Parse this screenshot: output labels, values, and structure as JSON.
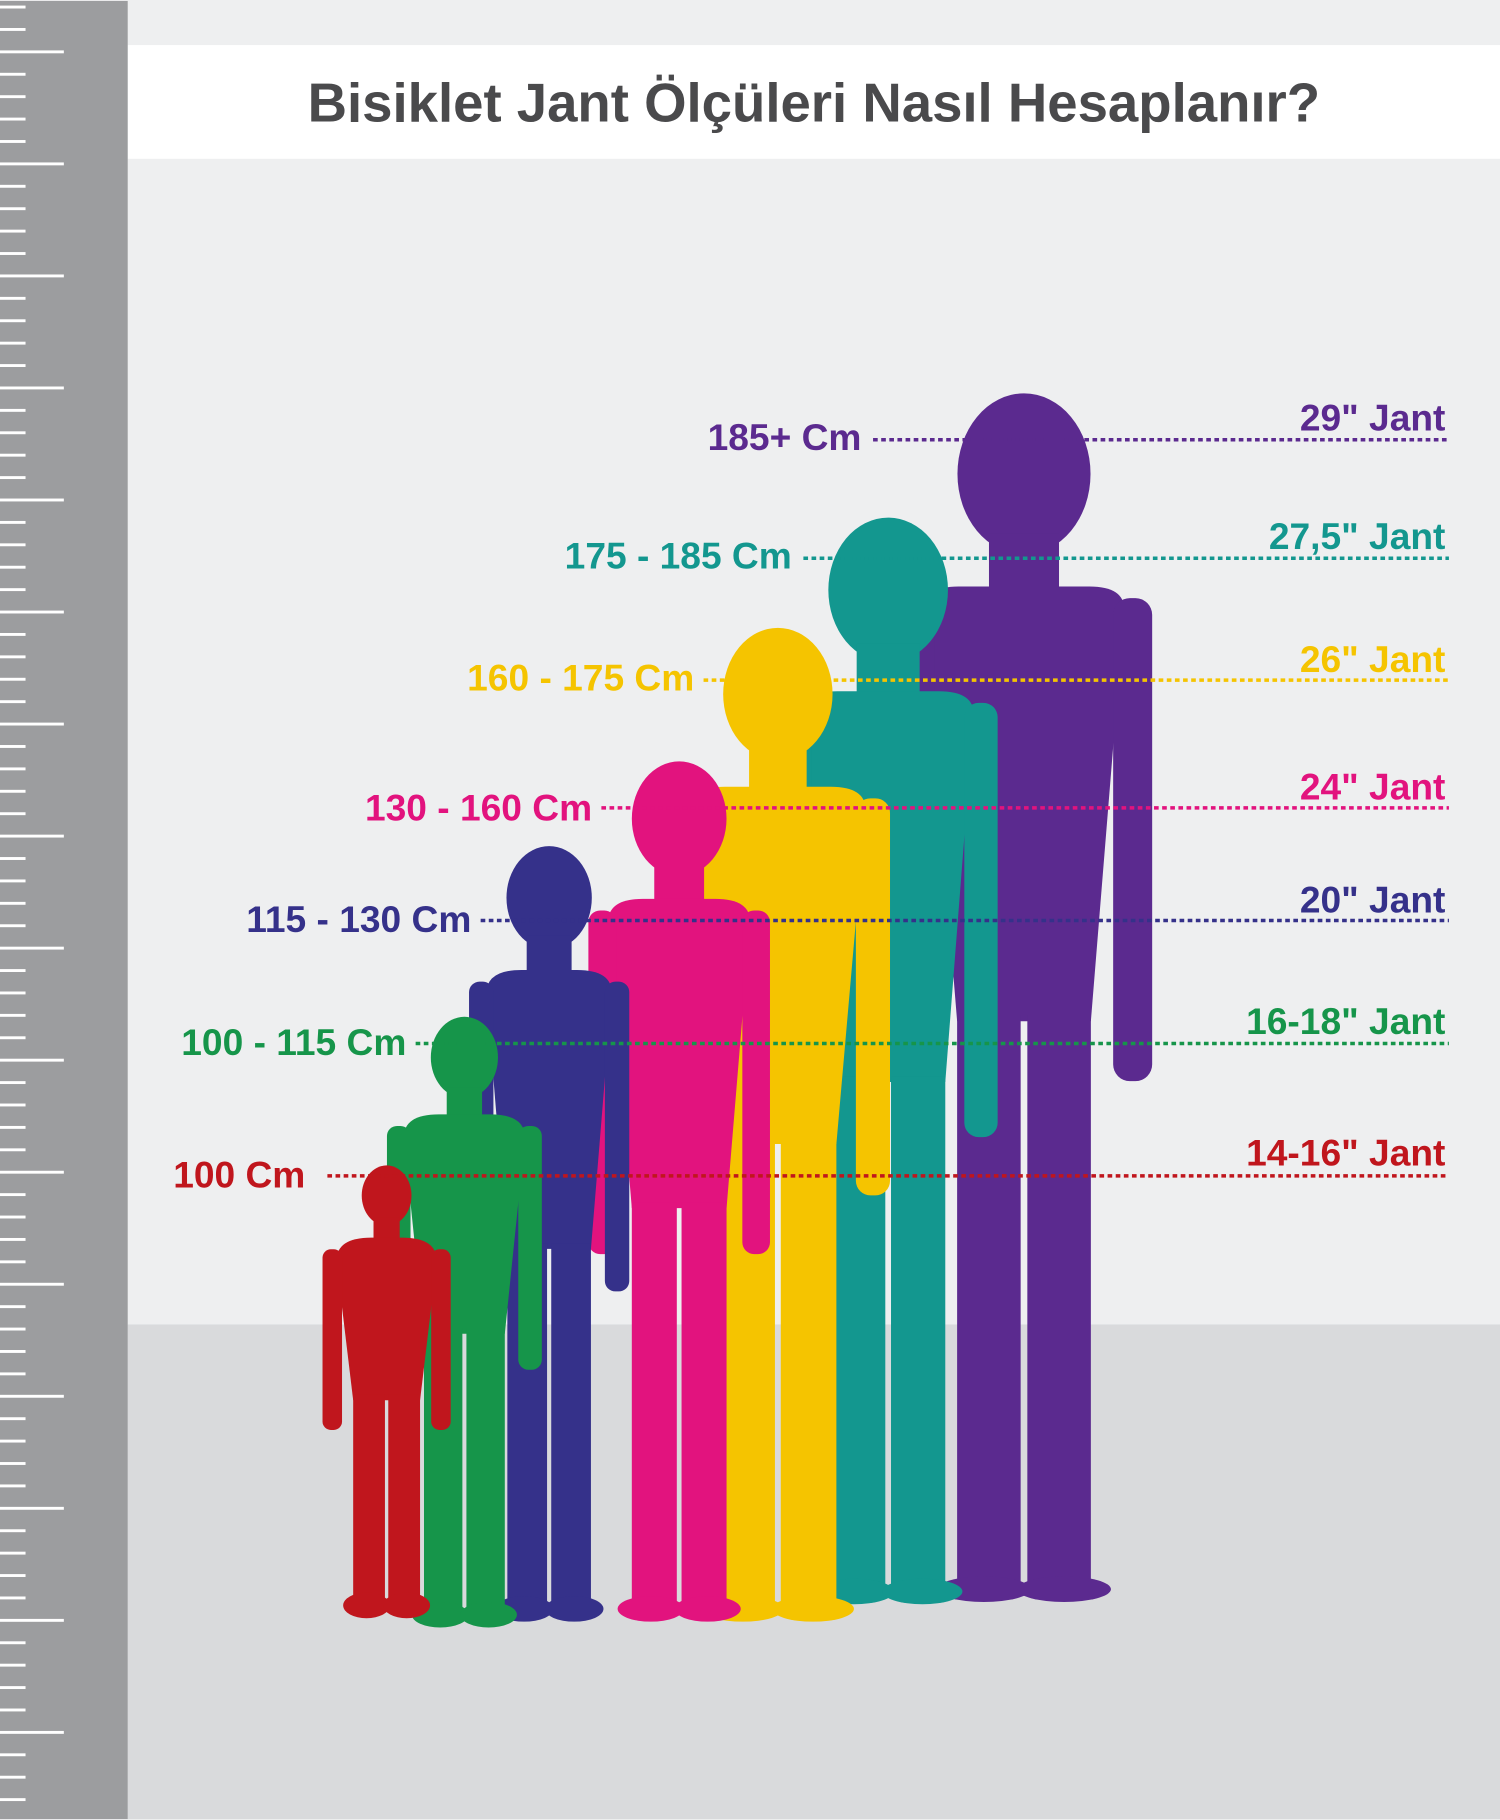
{
  "title": "Bisiklet Jant Ölçüleri Nasıl Hesaplanır?",
  "colors": {
    "ruler": "#9c9d9f",
    "ruler_ticks": "#ffffff",
    "background_wall": "#eeeff0",
    "floor": "#d8d9db",
    "title_band": "#ffffff"
  },
  "rows": [
    {
      "height": "185+ Cm",
      "rim": "29\" Jant",
      "color": "#5b2a8f"
    },
    {
      "height": "175 - 185 Cm",
      "rim": "27,5\" Jant",
      "color": "#13978f"
    },
    {
      "height": "160 - 175 Cm",
      "rim": "26\" Jant",
      "color": "#f5c400"
    },
    {
      "height": "130 - 160 Cm",
      "rim": "24\" Jant",
      "color": "#e2137e"
    },
    {
      "height": "115 - 130 Cm",
      "rim": "20\" Jant",
      "color": "#35318a"
    },
    {
      "height": "100 - 115 Cm",
      "rim": "16-18\" Jant",
      "color": "#16954a"
    },
    {
      "height": "100 Cm",
      "rim": "14-16\" Jant",
      "color": "#c0161d"
    }
  ]
}
